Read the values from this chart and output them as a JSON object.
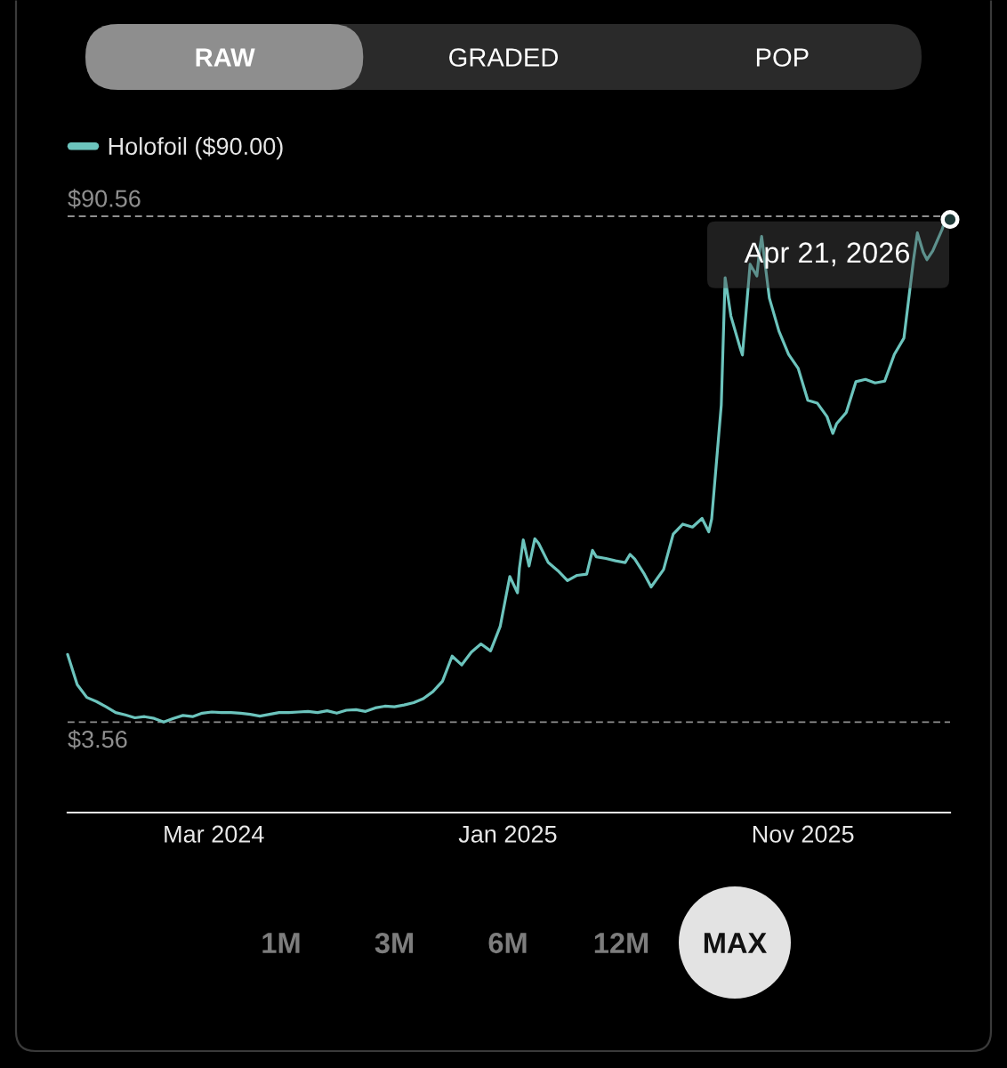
{
  "chart_data": {
    "type": "line",
    "annotations": [
      "RAW",
      "GRADED",
      "POP",
      "1M",
      "3M",
      "6M",
      "12M",
      "MAX",
      {
        "text": "Apr 21, 2026",
        "x": "2026-04-21",
        "y": 90.0
      }
    ],
    "x": [
      "2023-10-16",
      "2023-10-26",
      "2023-11-05",
      "2023-11-15",
      "2023-11-25",
      "2023-12-05",
      "2023-12-15",
      "2023-12-25",
      "2024-01-04",
      "2024-01-14",
      "2024-01-24",
      "2024-02-03",
      "2024-02-13",
      "2024-02-23",
      "2024-03-04",
      "2024-03-14",
      "2024-03-24",
      "2024-04-03",
      "2024-04-13",
      "2024-04-23",
      "2024-05-03",
      "2024-05-13",
      "2024-05-23",
      "2024-06-02",
      "2024-06-12",
      "2024-06-22",
      "2024-07-02",
      "2024-07-12",
      "2024-07-22",
      "2024-08-01",
      "2024-08-11",
      "2024-08-21",
      "2024-08-31",
      "2024-09-10",
      "2024-09-20",
      "2024-09-30",
      "2024-10-10",
      "2024-10-20",
      "2024-10-30",
      "2024-11-09",
      "2024-11-19",
      "2024-11-29",
      "2024-12-09",
      "2024-12-19",
      "2024-12-29",
      "2025-01-08",
      "2025-01-18",
      "2025-01-26",
      "2025-01-28",
      "2025-02-01",
      "2025-02-07",
      "2025-02-13",
      "2025-02-17",
      "2025-02-27",
      "2025-03-09",
      "2025-03-19",
      "2025-03-29",
      "2025-04-08",
      "2025-04-14",
      "2025-04-18",
      "2025-04-28",
      "2025-05-08",
      "2025-05-18",
      "2025-05-23",
      "2025-05-28",
      "2025-06-07",
      "2025-06-14",
      "2025-06-17",
      "2025-06-27",
      "2025-07-07",
      "2025-07-17",
      "2025-07-27",
      "2025-08-06",
      "2025-08-13",
      "2025-08-16",
      "2025-08-26",
      "2025-08-30",
      "2025-09-05",
      "2025-09-15",
      "2025-09-17",
      "2025-09-25",
      "2025-10-02",
      "2025-10-05",
      "2025-10-07",
      "2025-10-15",
      "2025-10-25",
      "2025-11-04",
      "2025-11-14",
      "2025-11-24",
      "2025-12-04",
      "2025-12-14",
      "2025-12-20",
      "2025-12-24",
      "2026-01-03",
      "2026-01-13",
      "2026-01-23",
      "2026-02-02",
      "2026-02-12",
      "2026-02-22",
      "2026-03-04",
      "2026-03-14",
      "2026-03-18",
      "2026-03-24",
      "2026-03-28",
      "2026-04-03",
      "2026-04-13",
      "2026-04-17",
      "2026-04-21"
    ],
    "series": [
      {
        "name": "Holofoil ($90.00)",
        "color": "#6cc4bd",
        "values": [
          15.2,
          10.0,
          7.8,
          7.1,
          6.2,
          5.2,
          4.8,
          4.3,
          4.5,
          4.2,
          3.56,
          4.2,
          4.7,
          4.5,
          5.1,
          5.3,
          5.2,
          5.2,
          5.1,
          4.9,
          4.6,
          4.9,
          5.2,
          5.2,
          5.3,
          5.4,
          5.2,
          5.5,
          5.1,
          5.6,
          5.7,
          5.4,
          6.0,
          6.3,
          6.2,
          6.5,
          6.9,
          7.6,
          8.8,
          10.6,
          14.9,
          13.4,
          15.6,
          17.0,
          15.8,
          20.0,
          28.6,
          25.8,
          30.0,
          34.9,
          30.4,
          35.1,
          34.3,
          31.0,
          29.6,
          27.9,
          28.8,
          29.0,
          33.1,
          32.0,
          31.7,
          31.3,
          31.0,
          32.4,
          31.6,
          29.0,
          26.8,
          27.5,
          29.8,
          35.9,
          37.6,
          37.1,
          38.6,
          36.3,
          38.5,
          58.1,
          80.0,
          73.4,
          67.7,
          66.7,
          82.3,
          80.3,
          84.9,
          87.1,
          76.5,
          70.8,
          66.8,
          64.4,
          58.9,
          58.4,
          56.1,
          53.2,
          54.9,
          56.8,
          62.1,
          62.5,
          61.9,
          62.2,
          66.8,
          69.6,
          83.1,
          87.7,
          84.4,
          83.1,
          84.6,
          88.4,
          90.56,
          90.0
        ]
      }
    ],
    "xlim": [
      "2023-10-16",
      "2026-04-21"
    ],
    "xticks": [
      {
        "value": "2024-03-16",
        "label": "Mar 2024"
      },
      {
        "value": "2025-01-16",
        "label": "Jan 2025"
      },
      {
        "value": "2025-11-19",
        "label": "Nov 2025"
      }
    ],
    "ylim": [
      -12,
      90.56
    ],
    "ref_lines": [
      {
        "axis": "y",
        "value": 90.56,
        "label": "$90.56",
        "color": "#8f8f8f",
        "line_style": "dashed"
      },
      {
        "axis": "y",
        "value": 3.56,
        "label": "$3.56",
        "color": "#8f8f8f",
        "line_style": "dashed"
      }
    ],
    "tick_labels": "x",
    "legend": "top left"
  }
}
